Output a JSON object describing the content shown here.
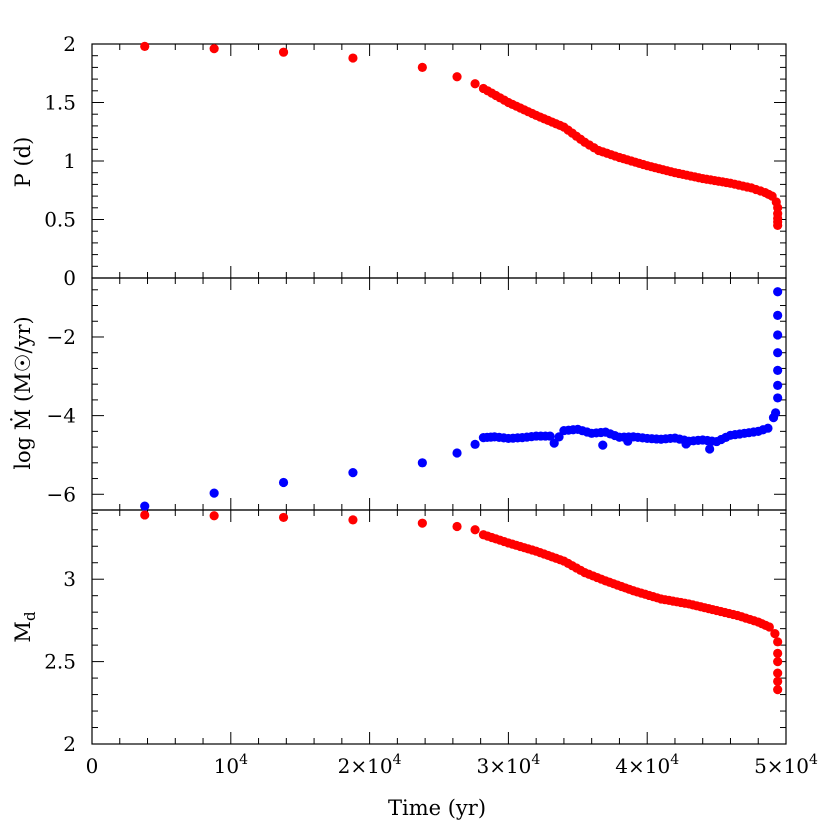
{
  "chart_data": {
    "type": "scatter",
    "xlabel": "Time (yr)",
    "xlim": [
      0,
      50000
    ],
    "x_tick_labels": [
      "0",
      "10",
      "2×10",
      "3×10",
      "4×10",
      "5×10"
    ],
    "x_tick_exponent": "4",
    "panels": [
      {
        "id": "period",
        "ylabel": "P (d)",
        "ylim": [
          0,
          2
        ],
        "y_ticks": [
          0,
          0.5,
          1,
          1.5,
          2
        ],
        "y_tick_labels": [
          "0",
          "0.5",
          "1",
          "1.5",
          "2"
        ],
        "color": "#ff0000",
        "sparse": [
          [
            3800,
            1.98
          ],
          [
            8800,
            1.96
          ],
          [
            13800,
            1.93
          ],
          [
            18800,
            1.88
          ],
          [
            23800,
            1.8
          ],
          [
            26300,
            1.72
          ],
          [
            27600,
            1.66
          ]
        ],
        "curve": [
          [
            28200,
            1.62
          ],
          [
            30000,
            1.5
          ],
          [
            32000,
            1.39
          ],
          [
            34000,
            1.29
          ],
          [
            35500,
            1.16
          ],
          [
            36500,
            1.09
          ],
          [
            38000,
            1.03
          ],
          [
            40000,
            0.96
          ],
          [
            42000,
            0.9
          ],
          [
            44000,
            0.85
          ],
          [
            46000,
            0.81
          ],
          [
            47500,
            0.77
          ],
          [
            48500,
            0.73
          ],
          [
            49000,
            0.7
          ],
          [
            49300,
            0.65
          ]
        ],
        "end": [
          [
            49400,
            0.6
          ],
          [
            49400,
            0.55
          ],
          [
            49400,
            0.51
          ],
          [
            49400,
            0.48
          ],
          [
            49400,
            0.45
          ]
        ]
      },
      {
        "id": "mdot",
        "ylabel": "log Ṁ (M☉/yr)",
        "ylim": [
          -6.4,
          -0.5
        ],
        "y_ticks": [
          -6,
          -4,
          -2
        ],
        "y_tick_labels": [
          "−6",
          "−4",
          "−2"
        ],
        "color": "#0000ff",
        "sparse": [
          [
            3800,
            -6.3
          ],
          [
            8800,
            -5.97
          ],
          [
            13800,
            -5.7
          ],
          [
            18800,
            -5.45
          ],
          [
            23800,
            -5.2
          ],
          [
            26300,
            -4.95
          ],
          [
            27600,
            -4.73
          ]
        ],
        "curve": [
          [
            28200,
            -4.56
          ],
          [
            29000,
            -4.54
          ],
          [
            30000,
            -4.58
          ],
          [
            31000,
            -4.56
          ],
          [
            32000,
            -4.52
          ],
          [
            33000,
            -4.52
          ],
          [
            33300,
            -4.7
          ],
          [
            34000,
            -4.38
          ],
          [
            35000,
            -4.35
          ],
          [
            36000,
            -4.45
          ],
          [
            37000,
            -4.42
          ],
          [
            38000,
            -4.55
          ],
          [
            39000,
            -4.54
          ],
          [
            40000,
            -4.58
          ],
          [
            41000,
            -4.6
          ],
          [
            42000,
            -4.57
          ],
          [
            43000,
            -4.65
          ],
          [
            44000,
            -4.62
          ],
          [
            45000,
            -4.66
          ],
          [
            46000,
            -4.5
          ],
          [
            47000,
            -4.45
          ],
          [
            48000,
            -4.4
          ],
          [
            48700,
            -4.32
          ]
        ],
        "end": [
          [
            49100,
            -4.05
          ],
          [
            49250,
            -3.93
          ],
          [
            49400,
            -3.55
          ],
          [
            49400,
            -3.23
          ],
          [
            49400,
            -2.85
          ],
          [
            49400,
            -2.4
          ],
          [
            49400,
            -1.95
          ],
          [
            49400,
            -1.45
          ],
          [
            49400,
            -0.85
          ]
        ],
        "outliers": [
          [
            36800,
            -4.75
          ],
          [
            44500,
            -4.85
          ],
          [
            38600,
            -4.65
          ],
          [
            42800,
            -4.72
          ]
        ]
      },
      {
        "id": "mass",
        "ylabel": "M_d",
        "ylim": [
          2.0,
          3.42
        ],
        "y_ticks": [
          2,
          2.5,
          3
        ],
        "y_tick_labels": [
          "2",
          "2.5",
          "3"
        ],
        "color": "#ff0000",
        "sparse": [
          [
            3800,
            3.39
          ],
          [
            8800,
            3.385
          ],
          [
            13800,
            3.375
          ],
          [
            18800,
            3.36
          ],
          [
            23800,
            3.34
          ],
          [
            26300,
            3.32
          ],
          [
            27600,
            3.3
          ]
        ],
        "curve": [
          [
            28200,
            3.27
          ],
          [
            30000,
            3.22
          ],
          [
            32000,
            3.17
          ],
          [
            34000,
            3.11
          ],
          [
            35500,
            3.04
          ],
          [
            37000,
            2.99
          ],
          [
            39000,
            2.93
          ],
          [
            41000,
            2.88
          ],
          [
            43000,
            2.85
          ],
          [
            45000,
            2.81
          ],
          [
            46500,
            2.78
          ],
          [
            48000,
            2.74
          ],
          [
            48800,
            2.71
          ],
          [
            49200,
            2.67
          ]
        ],
        "end": [
          [
            49400,
            2.62
          ],
          [
            49400,
            2.55
          ],
          [
            49400,
            2.5
          ],
          [
            49400,
            2.43
          ],
          [
            49400,
            2.38
          ],
          [
            49400,
            2.33
          ]
        ]
      }
    ]
  }
}
